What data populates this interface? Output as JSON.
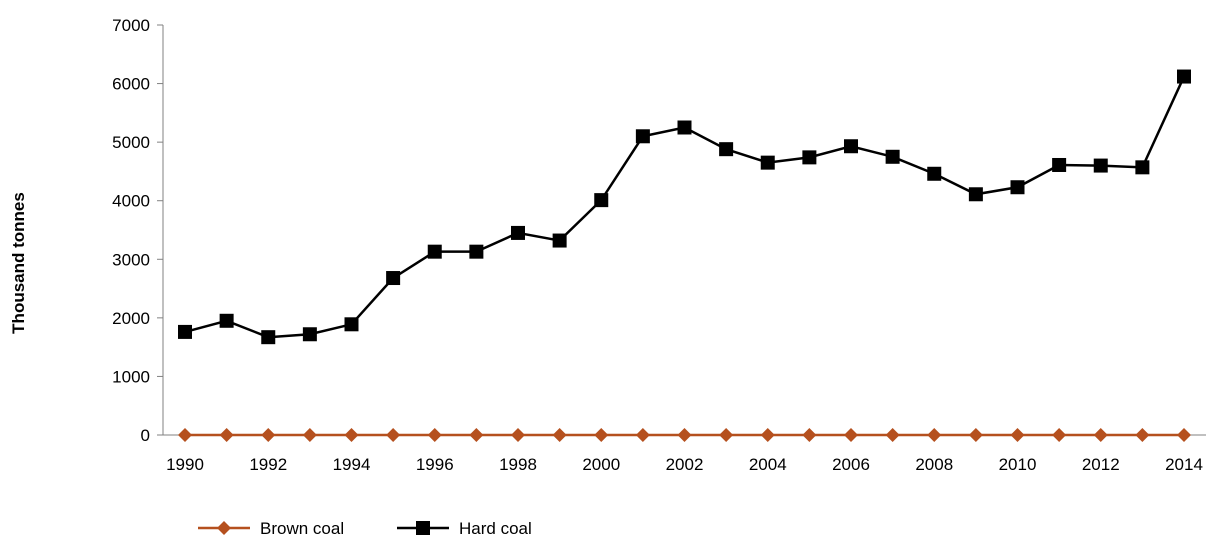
{
  "chart_data": {
    "type": "line",
    "ylabel": "Thousand tonnes",
    "xlabel": "",
    "ylim": [
      0,
      7000
    ],
    "yticks": [
      0,
      1000,
      2000,
      3000,
      4000,
      5000,
      6000,
      7000
    ],
    "x": [
      1990,
      1991,
      1992,
      1993,
      1994,
      1995,
      1996,
      1997,
      1998,
      1999,
      2000,
      2001,
      2002,
      2003,
      2004,
      2005,
      2006,
      2007,
      2008,
      2009,
      2010,
      2011,
      2012,
      2013,
      2014
    ],
    "xticks": [
      1990,
      1992,
      1994,
      1996,
      1998,
      2000,
      2002,
      2004,
      2006,
      2008,
      2010,
      2012,
      2014
    ],
    "grid": false,
    "legend_position": "bottom",
    "series": [
      {
        "name": "Brown coal",
        "color": "#B5501E",
        "marker": "diamond",
        "values": [
          0,
          0,
          0,
          0,
          0,
          0,
          0,
          0,
          0,
          0,
          0,
          0,
          0,
          0,
          0,
          0,
          0,
          0,
          0,
          0,
          0,
          0,
          0,
          0,
          0
        ]
      },
      {
        "name": "Hard coal",
        "color": "#000000",
        "marker": "square",
        "values": [
          1760,
          1950,
          1670,
          1720,
          1890,
          2680,
          3130,
          3130,
          3450,
          3320,
          4010,
          5100,
          5250,
          4880,
          4650,
          4740,
          4930,
          4750,
          4460,
          4110,
          4230,
          4610,
          4600,
          4570,
          6120
        ]
      }
    ]
  }
}
